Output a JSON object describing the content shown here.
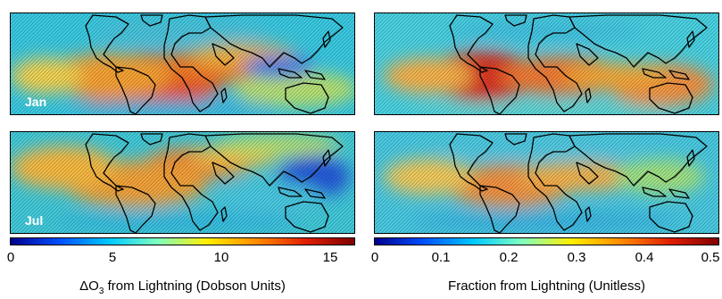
{
  "panels": [
    {
      "id": "jan-left",
      "label": "Jan"
    },
    {
      "id": "jan-right",
      "label": ""
    },
    {
      "id": "jul-left",
      "label": "Jul"
    },
    {
      "id": "jul-right",
      "label": ""
    }
  ],
  "colorbar_left": {
    "ticks": [
      "0",
      "5",
      "10",
      "15"
    ],
    "title_prefix": "ΔO",
    "title_sub": "3",
    "title_suffix": " from Lightning (Dobson Units)"
  },
  "colorbar_right": {
    "ticks": [
      "0",
      "0.1",
      "0.2",
      "0.3",
      "0.4",
      "0.5"
    ],
    "title": "Fraction from Lightning (Unitless)"
  },
  "colors": {
    "colormap": [
      "#00008f",
      "#0050ff",
      "#00c8ff",
      "#7fffbf",
      "#ffef00",
      "#ff8c00",
      "#e02000",
      "#800000"
    ]
  }
}
